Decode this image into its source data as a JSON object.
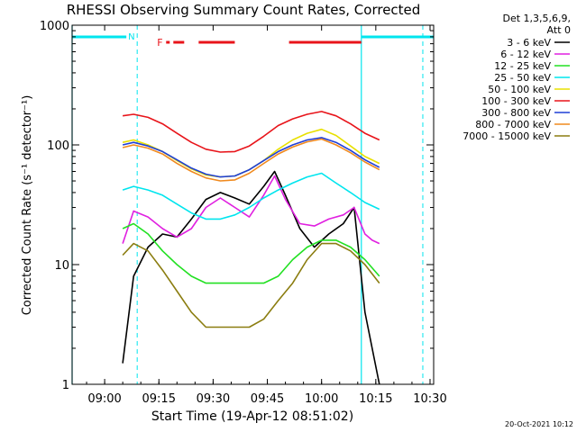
{
  "chart_data": {
    "type": "line",
    "title": "RHESSI Observing Summary Count Rates, Corrected",
    "xlabel": "Start Time (19-Apr-12 08:51:02)",
    "ylabel": "Corrected Count Rate (s⁻¹ detector⁻¹)",
    "y_scale": "log",
    "ylim": [
      1,
      1000
    ],
    "xlim": [
      "08:51",
      "10:31"
    ],
    "x_tick_labels": [
      "09:00",
      "09:15",
      "09:30",
      "09:45",
      "10:00",
      "10:15",
      "10:30"
    ],
    "y_tick_labels": [
      "1",
      "10",
      "100",
      "1000"
    ],
    "legend_header": [
      "Det 1,3,5,6,9,",
      "Att 0"
    ],
    "legend_position": "right-outside",
    "footer_date": "20-Oct-2021 10:12",
    "flags": {
      "night_label": "N",
      "flare_label": "F",
      "night_color": "#00e5ee",
      "flare_color": "#e8141a",
      "night_intervals": [
        [
          "08:51",
          "09:06"
        ],
        [
          "10:11",
          "10:31"
        ]
      ],
      "flare_intervals": [
        [
          "09:17",
          "09:18"
        ],
        [
          "09:19",
          "09:22"
        ],
        [
          "09:26",
          "09:36"
        ],
        [
          "09:51",
          "10:11"
        ]
      ]
    },
    "vertical_lines": {
      "solid": [
        "08:51",
        "10:11"
      ],
      "dashed": [
        "09:09",
        "10:28"
      ]
    },
    "series": [
      {
        "name": "3 - 6 keV",
        "color": "#000000",
        "x": [
          "09:05",
          "09:08",
          "09:12",
          "09:16",
          "09:20",
          "09:24",
          "09:28",
          "09:32",
          "09:36",
          "09:40",
          "09:44",
          "09:47",
          "09:50",
          "09:54",
          "09:58",
          "10:02",
          "10:06",
          "10:09",
          "10:12",
          "10:14",
          "10:16"
        ],
        "y": [
          1.5,
          8,
          14,
          18,
          17,
          24,
          35,
          40,
          36,
          32,
          45,
          60,
          38,
          20,
          14,
          18,
          22,
          30,
          4,
          2,
          1
        ]
      },
      {
        "name": "6 - 12 keV",
        "color": "#e020e0",
        "x": [
          "09:05",
          "09:08",
          "09:12",
          "09:16",
          "09:20",
          "09:24",
          "09:28",
          "09:32",
          "09:36",
          "09:40",
          "09:44",
          "09:47",
          "09:50",
          "09:54",
          "09:58",
          "10:02",
          "10:06",
          "10:09",
          "10:12",
          "10:14",
          "10:16"
        ],
        "y": [
          15,
          28,
          25,
          20,
          17,
          20,
          30,
          36,
          30,
          25,
          38,
          55,
          35,
          22,
          21,
          24,
          26,
          30,
          18,
          16,
          15
        ]
      },
      {
        "name": "12 - 25 keV",
        "color": "#22e022",
        "x": [
          "09:05",
          "09:08",
          "09:12",
          "09:16",
          "09:20",
          "09:24",
          "09:28",
          "09:32",
          "09:36",
          "09:40",
          "09:44",
          "09:48",
          "09:52",
          "09:56",
          "10:00",
          "10:04",
          "10:08",
          "10:12",
          "10:16"
        ],
        "y": [
          20,
          22,
          18,
          13,
          10,
          8,
          7,
          7,
          7,
          7,
          7,
          8,
          11,
          14,
          16,
          16,
          14,
          11,
          8
        ]
      },
      {
        "name": "25 - 50 keV",
        "color": "#00e5ee",
        "x": [
          "09:05",
          "09:08",
          "09:12",
          "09:16",
          "09:20",
          "09:24",
          "09:28",
          "09:32",
          "09:36",
          "09:40",
          "09:44",
          "09:48",
          "09:52",
          "09:56",
          "10:00",
          "10:04",
          "10:08",
          "10:12",
          "10:16"
        ],
        "y": [
          42,
          45,
          42,
          38,
          32,
          27,
          24,
          24,
          26,
          30,
          36,
          42,
          48,
          54,
          58,
          48,
          40,
          33,
          29
        ]
      },
      {
        "name": "50 - 100 keV",
        "color": "#e8e000",
        "x": [
          "09:05",
          "09:08",
          "09:12",
          "09:16",
          "09:20",
          "09:24",
          "09:28",
          "09:32",
          "09:36",
          "09:40",
          "09:44",
          "09:48",
          "09:52",
          "09:56",
          "10:00",
          "10:04",
          "10:08",
          "10:12",
          "10:16"
        ],
        "y": [
          105,
          110,
          100,
          88,
          74,
          63,
          56,
          54,
          55,
          62,
          74,
          92,
          110,
          125,
          135,
          120,
          98,
          80,
          70
        ]
      },
      {
        "name": "100 - 300 keV",
        "color": "#e8141a",
        "x": [
          "09:05",
          "09:08",
          "09:12",
          "09:16",
          "09:20",
          "09:24",
          "09:28",
          "09:32",
          "09:36",
          "09:40",
          "09:44",
          "09:48",
          "09:52",
          "09:56",
          "10:00",
          "10:04",
          "10:08",
          "10:12",
          "10:16"
        ],
        "y": [
          175,
          180,
          170,
          150,
          125,
          105,
          92,
          87,
          88,
          98,
          118,
          145,
          165,
          180,
          190,
          175,
          150,
          125,
          110
        ]
      },
      {
        "name": "300 - 800 keV",
        "color": "#1f3fd6",
        "x": [
          "09:05",
          "09:08",
          "09:12",
          "09:16",
          "09:20",
          "09:24",
          "09:28",
          "09:32",
          "09:36",
          "09:40",
          "09:44",
          "09:48",
          "09:52",
          "09:56",
          "10:00",
          "10:04",
          "10:08",
          "10:12",
          "10:16"
        ],
        "y": [
          100,
          105,
          98,
          88,
          75,
          64,
          57,
          54,
          55,
          62,
          74,
          88,
          100,
          110,
          115,
          105,
          90,
          75,
          65
        ]
      },
      {
        "name": "800 - 7000 keV",
        "color": "#f08a1e",
        "x": [
          "09:05",
          "09:08",
          "09:12",
          "09:16",
          "09:20",
          "09:24",
          "09:28",
          "09:32",
          "09:36",
          "09:40",
          "09:44",
          "09:48",
          "09:52",
          "09:56",
          "10:00",
          "10:04",
          "10:08",
          "10:12",
          "10:16"
        ],
        "y": [
          95,
          100,
          94,
          84,
          70,
          60,
          53,
          50,
          51,
          58,
          70,
          84,
          96,
          106,
          112,
          100,
          86,
          72,
          62
        ]
      },
      {
        "name": "7000 - 15000 keV",
        "color": "#8b7d10",
        "x": [
          "09:05",
          "09:08",
          "09:12",
          "09:16",
          "09:20",
          "09:24",
          "09:28",
          "09:32",
          "09:36",
          "09:40",
          "09:44",
          "09:48",
          "09:52",
          "09:56",
          "10:00",
          "10:04",
          "10:08",
          "10:12",
          "10:16"
        ],
        "y": [
          12,
          15,
          13,
          9,
          6,
          4,
          3,
          3,
          3,
          3,
          3.5,
          5,
          7,
          11,
          15,
          15,
          13,
          10,
          7
        ]
      }
    ]
  }
}
